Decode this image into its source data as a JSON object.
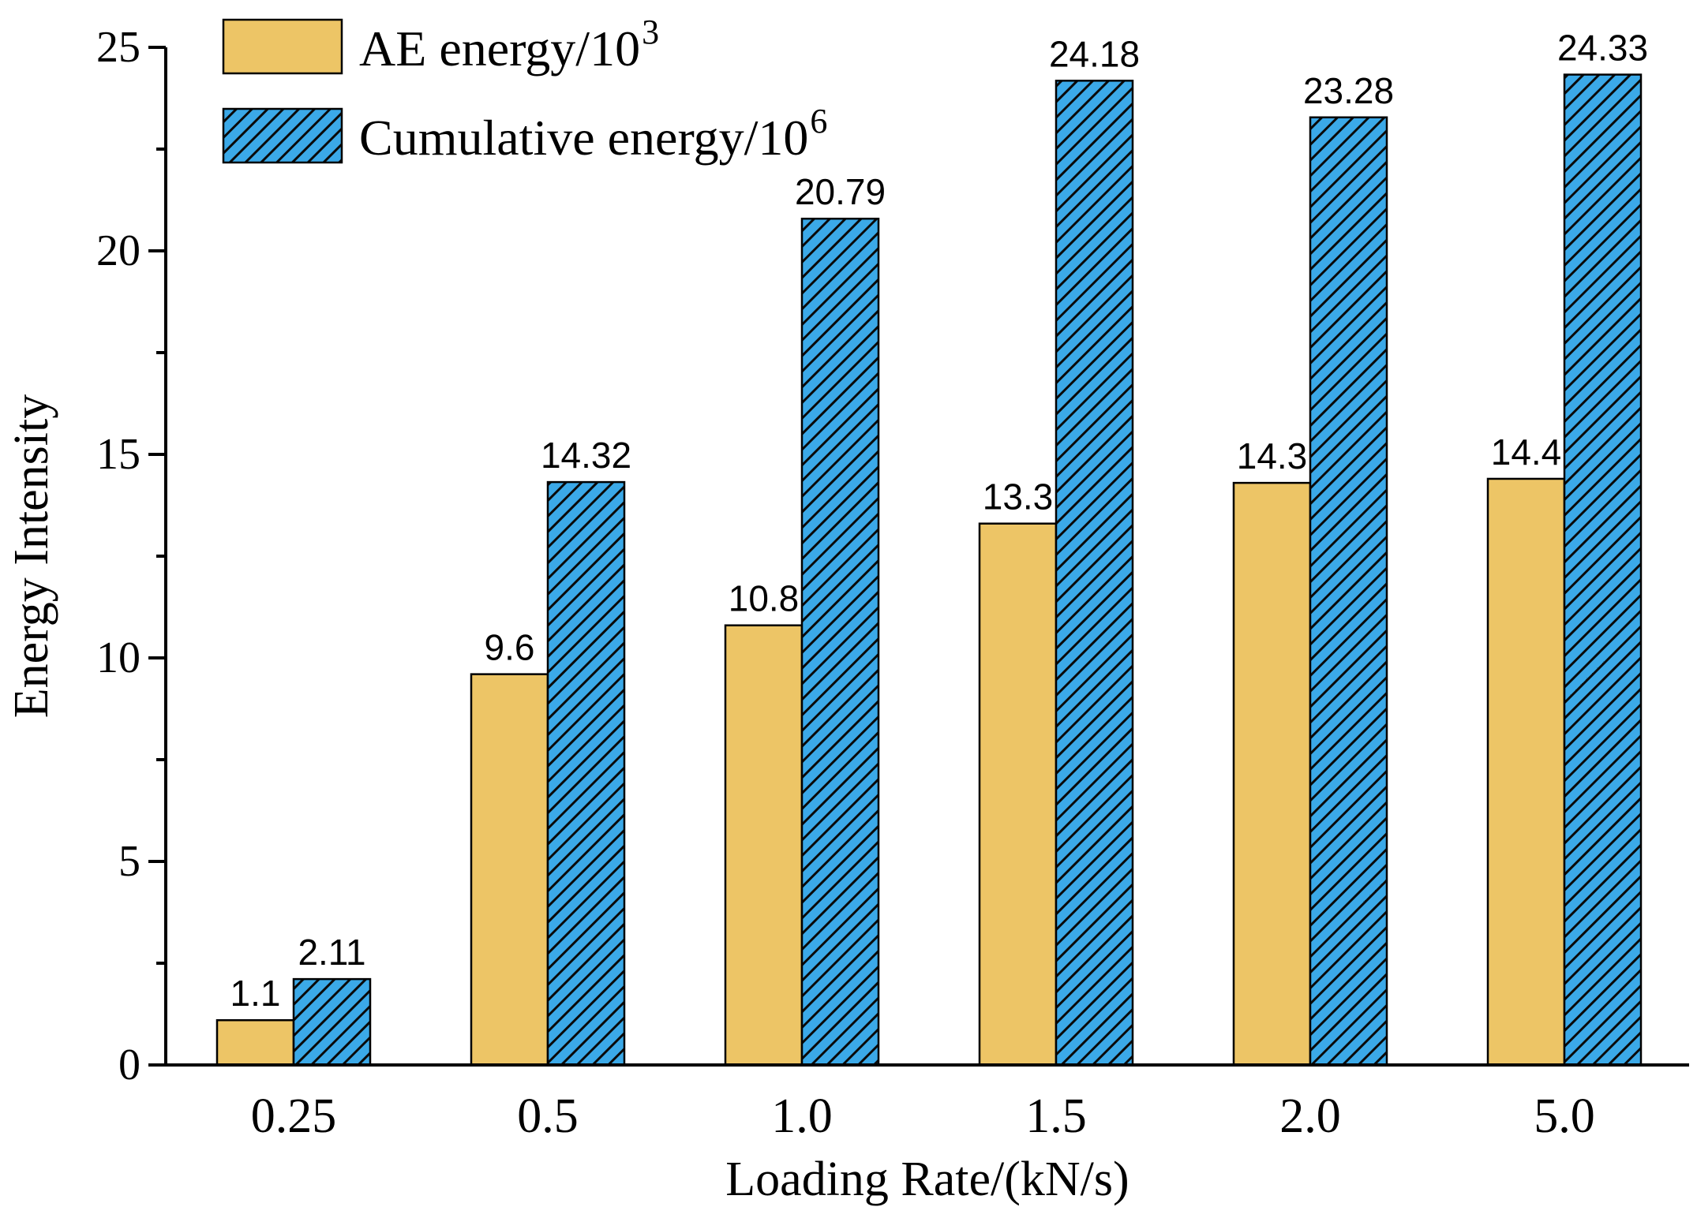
{
  "chart_data": {
    "type": "bar",
    "title": "",
    "xlabel": "Loading Rate/(kN/s)",
    "ylabel": "Energy Intensity",
    "ylim": [
      0,
      25
    ],
    "yticks": [
      0,
      5,
      10,
      15,
      20,
      25
    ],
    "categories": [
      "0.25",
      "0.5",
      "1.0",
      "1.5",
      "2.0",
      "5.0"
    ],
    "series": [
      {
        "name": "AE energy/10",
        "name_sup": "3",
        "values": [
          1.1,
          9.6,
          10.8,
          13.3,
          14.3,
          14.4
        ],
        "labels": [
          "1.1",
          "9.6",
          "10.8",
          "13.3",
          "14.3",
          "14.4"
        ],
        "fill": "#EDC566",
        "pattern": "solid"
      },
      {
        "name": "Cumulative energy/10",
        "name_sup": "6",
        "values": [
          2.11,
          14.32,
          20.79,
          24.18,
          23.28,
          24.33
        ],
        "labels": [
          "2.11",
          "14.32",
          "20.79",
          "24.18",
          "23.28",
          "24.33"
        ],
        "fill": "#3BA9E8",
        "pattern": "hatch"
      }
    ],
    "legend_position": "top-left",
    "grid": false
  }
}
